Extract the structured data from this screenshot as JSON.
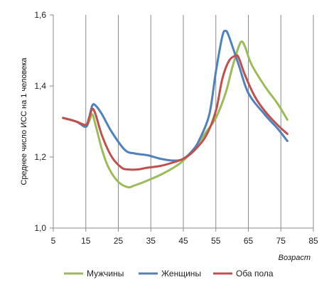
{
  "chart_data": {
    "type": "line",
    "xlabel": "Возраст",
    "ylabel": "Среднее число ИСС на 1 человека",
    "xlim": [
      5,
      85
    ],
    "ylim": [
      1.0,
      1.6
    ],
    "x_ticks": [
      "5",
      "15",
      "25",
      "35",
      "45",
      "55",
      "65",
      "75",
      "85"
    ],
    "y_ticks": [
      "1,0",
      "1,2",
      "1,4",
      "1,6"
    ],
    "grid": "vertical",
    "legend_position": "bottom",
    "series": [
      {
        "name": "Мужчины",
        "color": "#9BBB59",
        "points": [
          [
            8,
            1.31
          ],
          [
            12,
            1.3
          ],
          [
            15,
            1.29
          ],
          [
            16,
            1.3
          ],
          [
            17,
            1.32
          ],
          [
            18,
            1.29
          ],
          [
            20,
            1.22
          ],
          [
            22,
            1.17
          ],
          [
            25,
            1.13
          ],
          [
            28,
            1.115
          ],
          [
            30,
            1.12
          ],
          [
            33,
            1.13
          ],
          [
            38,
            1.15
          ],
          [
            42,
            1.17
          ],
          [
            45,
            1.19
          ],
          [
            48,
            1.22
          ],
          [
            52,
            1.27
          ],
          [
            55,
            1.31
          ],
          [
            58,
            1.38
          ],
          [
            60,
            1.45
          ],
          [
            62,
            1.51
          ],
          [
            63,
            1.525
          ],
          [
            64,
            1.51
          ],
          [
            66,
            1.46
          ],
          [
            70,
            1.4
          ],
          [
            74,
            1.35
          ],
          [
            77,
            1.305
          ]
        ]
      },
      {
        "name": "Женщины",
        "color": "#4F81BD",
        "points": [
          [
            8,
            1.31
          ],
          [
            12,
            1.3
          ],
          [
            15,
            1.285
          ],
          [
            16,
            1.31
          ],
          [
            17,
            1.345
          ],
          [
            18,
            1.345
          ],
          [
            20,
            1.32
          ],
          [
            23,
            1.27
          ],
          [
            27,
            1.22
          ],
          [
            30,
            1.21
          ],
          [
            34,
            1.205
          ],
          [
            38,
            1.195
          ],
          [
            42,
            1.19
          ],
          [
            45,
            1.195
          ],
          [
            48,
            1.22
          ],
          [
            50,
            1.25
          ],
          [
            53,
            1.32
          ],
          [
            55,
            1.44
          ],
          [
            57,
            1.54
          ],
          [
            58,
            1.555
          ],
          [
            59,
            1.54
          ],
          [
            62,
            1.46
          ],
          [
            65,
            1.38
          ],
          [
            70,
            1.32
          ],
          [
            74,
            1.28
          ],
          [
            77,
            1.245
          ]
        ]
      },
      {
        "name": "Оба пола",
        "color": "#C0504D",
        "points": [
          [
            8,
            1.31
          ],
          [
            12,
            1.3
          ],
          [
            15,
            1.29
          ],
          [
            16,
            1.31
          ],
          [
            17,
            1.335
          ],
          [
            18,
            1.32
          ],
          [
            20,
            1.26
          ],
          [
            23,
            1.2
          ],
          [
            26,
            1.17
          ],
          [
            28,
            1.165
          ],
          [
            31,
            1.165
          ],
          [
            34,
            1.17
          ],
          [
            38,
            1.175
          ],
          [
            42,
            1.185
          ],
          [
            45,
            1.195
          ],
          [
            48,
            1.215
          ],
          [
            52,
            1.26
          ],
          [
            55,
            1.33
          ],
          [
            57,
            1.42
          ],
          [
            59,
            1.47
          ],
          [
            61,
            1.485
          ],
          [
            62,
            1.48
          ],
          [
            64,
            1.43
          ],
          [
            67,
            1.37
          ],
          [
            70,
            1.33
          ],
          [
            74,
            1.29
          ],
          [
            77,
            1.265
          ]
        ]
      }
    ]
  }
}
